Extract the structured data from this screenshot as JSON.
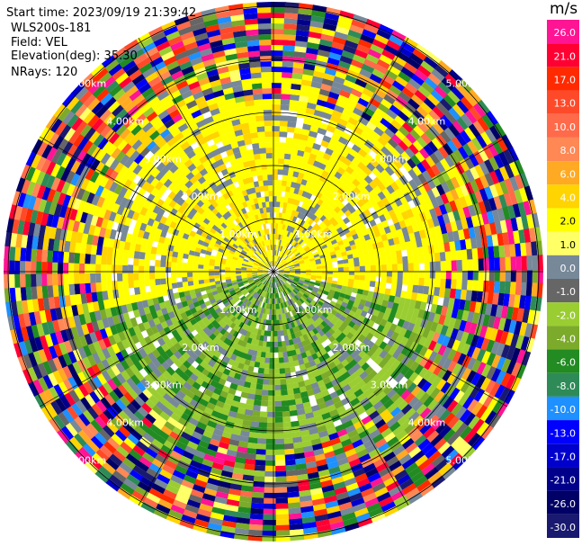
{
  "header": {
    "start_time": "Start time: 2023/09/19 21:39:42",
    "instrument": "WLS200s-181",
    "field": "Field: VEL",
    "elevation": "Elevation(deg): 35.30",
    "nrays": "NRays: 120"
  },
  "colorbar": {
    "unit": "m/s",
    "bins": [
      {
        "label": "26.0",
        "color": "#ff1493"
      },
      {
        "label": "21.0",
        "color": "#ff0033"
      },
      {
        "label": "17.0",
        "color": "#ff2a00"
      },
      {
        "label": "13.0",
        "color": "#ff4a2a"
      },
      {
        "label": "10.0",
        "color": "#ff6a4a"
      },
      {
        "label": "8.0",
        "color": "#ff8855"
      },
      {
        "label": "6.0",
        "color": "#ffaa22"
      },
      {
        "label": "4.0",
        "color": "#ffd400"
      },
      {
        "label": "2.0",
        "color": "#ffff00"
      },
      {
        "label": "1.0",
        "color": "#ffff66"
      },
      {
        "label": "0.0",
        "color": "#778899"
      },
      {
        "label": "-1.0",
        "color": "#666666"
      },
      {
        "label": "-2.0",
        "color": "#9acd32"
      },
      {
        "label": "-4.0",
        "color": "#7caa2a"
      },
      {
        "label": "-6.0",
        "color": "#228b22"
      },
      {
        "label": "-8.0",
        "color": "#2e8b57"
      },
      {
        "label": "-10.0",
        "color": "#1e90ff"
      },
      {
        "label": "-13.0",
        "color": "#0000ff"
      },
      {
        "label": "-17.0",
        "color": "#0000cc"
      },
      {
        "label": "-21.0",
        "color": "#00008b"
      },
      {
        "label": "-26.0",
        "color": "#000066"
      },
      {
        "label": "-30.0",
        "color": "#191970"
      }
    ]
  },
  "range_rings": {
    "labels": [
      "1.00km",
      "2.00km",
      "3.00km",
      "4.00km",
      "5.00km"
    ]
  }
}
